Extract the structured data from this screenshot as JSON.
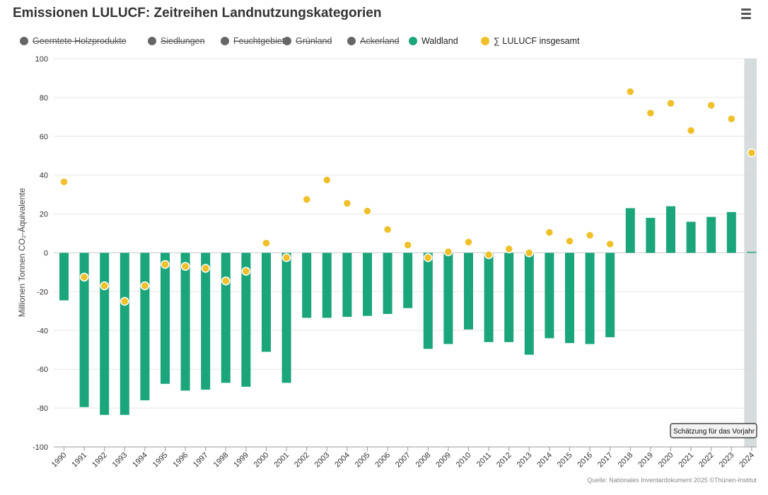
{
  "title": "Emissionen LULUCF: Zeitreihen Landnutzungskategorien",
  "menu_icon": "hamburger-menu-icon",
  "legend": [
    {
      "label": "Geerntete Holzprodukte",
      "active": false,
      "color": "#666666"
    },
    {
      "label": "Siedlungen",
      "active": false,
      "color": "#666666"
    },
    {
      "label": "Feuchtgebiet",
      "active": false,
      "color": "#666666"
    },
    {
      "label": "Grünland",
      "active": false,
      "color": "#666666"
    },
    {
      "label": "Ackerland",
      "active": false,
      "color": "#666666"
    },
    {
      "label": "Waldland",
      "active": true,
      "color": "#1aa57a"
    },
    {
      "label": "∑ LULUCF insgesamt",
      "active": true,
      "color": "#f0c02a"
    }
  ],
  "tooltip": "Schätzung für das Vorjahr",
  "source": "Quelle: Nationales Inventardokument 2025 ©Thünen-Institut",
  "chart_data": {
    "type": "bar",
    "title": "Emissionen LULUCF: Zeitreihen Landnutzungskategorien",
    "ylabel": "Millionen Tonnen CO₂-Äquivalente",
    "xlabel": "",
    "ylim": [
      -100,
      100
    ],
    "yticks": [
      100,
      80,
      60,
      40,
      20,
      0,
      -20,
      -40,
      -60,
      -80,
      -100
    ],
    "grid": true,
    "legend_position": "top-left",
    "categories": [
      "1990",
      "1991",
      "1992",
      "1993",
      "1994",
      "1995",
      "1996",
      "1997",
      "1998",
      "1999",
      "2000",
      "2001",
      "2002",
      "2003",
      "2004",
      "2005",
      "2006",
      "2007",
      "2008",
      "2009",
      "2010",
      "2011",
      "2012",
      "2013",
      "2014",
      "2015",
      "2016",
      "2017",
      "2018",
      "2019",
      "2020",
      "2021",
      "2022",
      "2023",
      "2024"
    ],
    "series": [
      {
        "name": "Waldland",
        "kind": "bar",
        "color": "#1aa57a",
        "values": [
          -24.5,
          -79.5,
          -83.5,
          -83.5,
          -76,
          -67.5,
          -71,
          -70.5,
          -67,
          -69,
          -51,
          -67,
          -33.5,
          -33.5,
          -33,
          -32.5,
          -31.5,
          -28.5,
          -49.5,
          -47,
          -39.5,
          -46,
          -46,
          -52.5,
          -44,
          -46.5,
          -47,
          -43.5,
          23,
          18,
          24,
          16,
          18.5,
          21,
          0.5
        ]
      },
      {
        "name": "∑ LULUCF insgesamt",
        "kind": "scatter",
        "color": "#f0c02a",
        "values": [
          36.5,
          -12.5,
          -17,
          -25,
          -17,
          -6,
          -7,
          -8,
          -14.5,
          -9.5,
          5,
          -2.5,
          27.5,
          37.5,
          25.5,
          21.5,
          12,
          4,
          -2.5,
          0.5,
          5.5,
          -1,
          2,
          0,
          10.5,
          6,
          9,
          4.5,
          83,
          72,
          77,
          63,
          76,
          69,
          51.5
        ]
      }
    ],
    "highlight_category": "2024"
  }
}
